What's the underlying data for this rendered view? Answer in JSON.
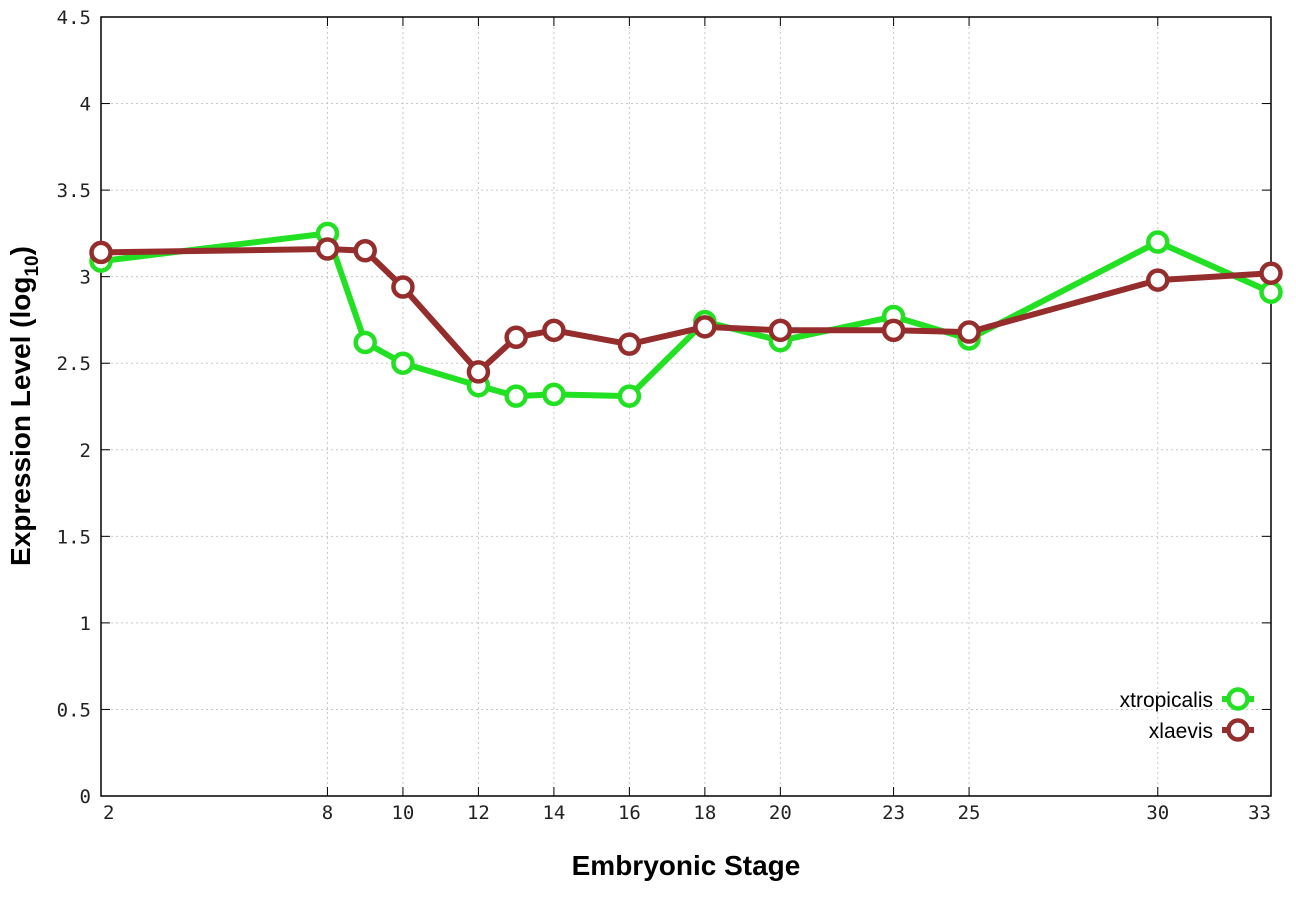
{
  "chart_data": {
    "type": "line",
    "xlabel": "Embryonic Stage",
    "ylabel_main": "Expression Level (log",
    "ylabel_sub": "10",
    "ylabel_close": ")",
    "ylim": [
      0,
      4.5
    ],
    "y_ticks": [
      "0",
      "0.5",
      "1",
      "1.5",
      "2",
      "2.5",
      "3",
      "3.5",
      "4",
      "4.5"
    ],
    "x_ticks": [
      "2",
      "8",
      "10",
      "12",
      "14",
      "16",
      "18",
      "20",
      "23",
      "25",
      "30",
      "33"
    ],
    "x": [
      2,
      8,
      9,
      10,
      12,
      13,
      14,
      16,
      18,
      20,
      23,
      25,
      30,
      33
    ],
    "grid": true,
    "legend_position": "bottom-right",
    "series": [
      {
        "name": "xtropicalis",
        "color": "#22e022",
        "values": [
          3.09,
          3.25,
          2.62,
          2.5,
          2.37,
          2.31,
          2.32,
          2.31,
          2.74,
          2.63,
          2.77,
          2.64,
          3.2,
          2.91
        ]
      },
      {
        "name": "xlaevis",
        "color": "#962d2d",
        "values": [
          3.14,
          3.16,
          3.15,
          2.94,
          2.45,
          2.65,
          2.69,
          2.61,
          2.71,
          2.69,
          2.69,
          2.68,
          2.98,
          3.02
        ]
      }
    ]
  }
}
